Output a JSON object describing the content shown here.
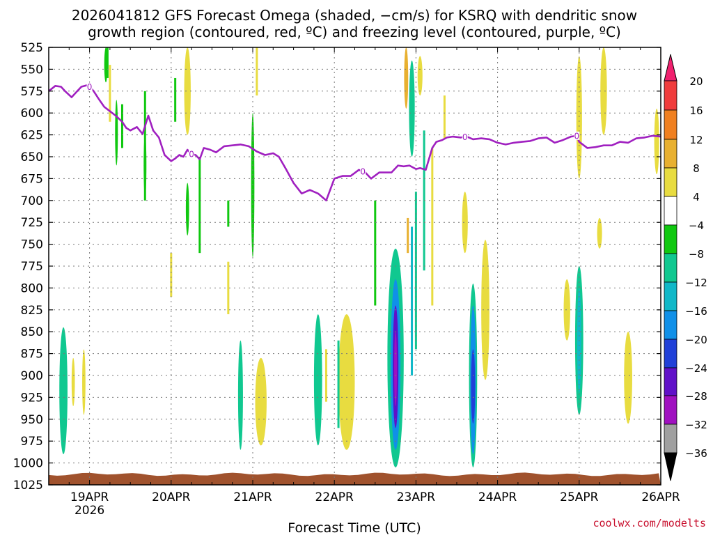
{
  "chart_data": {
    "type": "heatmap",
    "title_line1": "2026041812 GFS Forecast Omega (shaded, −cm/s) for KSRQ with dendritic snow",
    "title_line2": "growth region (contoured, red, ºC) and freezing level (contoured, purple, ºC)",
    "xlabel": "Forecast Time (UTC)",
    "x_tick_labels": [
      "19APR",
      "20APR",
      "21APR",
      "22APR",
      "23APR",
      "24APR",
      "25APR",
      "26APR"
    ],
    "x_tick_sublabel": "2026",
    "x_range_days": [
      18.5,
      26.0
    ],
    "y_tick_labels": [
      525,
      550,
      575,
      600,
      625,
      650,
      675,
      700,
      725,
      750,
      775,
      800,
      825,
      850,
      875,
      900,
      925,
      950,
      975,
      1000,
      1025
    ],
    "ylim_hpa": [
      525,
      1025
    ],
    "grid": true,
    "colorbar": {
      "labels": [
        "20",
        "16",
        "12",
        "8",
        "4",
        "−4",
        "−8",
        "−12",
        "−16",
        "−20",
        "−24",
        "−28",
        "−32",
        "−36"
      ],
      "colors": [
        "#f0206e",
        "#f03c3c",
        "#f08020",
        "#e8b030",
        "#e8dc40",
        "#ffffff",
        "#10c810",
        "#10c890",
        "#10b8c8",
        "#1090e8",
        "#2040d8",
        "#6010c8",
        "#a010c0",
        "#a0a0a0",
        "#000000"
      ]
    },
    "freezing_level_label": "0",
    "freezing_level": {
      "day": [
        18.5,
        18.58,
        18.65,
        18.7,
        18.78,
        18.85,
        18.9,
        18.98,
        19.05,
        19.12,
        19.18,
        19.25,
        19.32,
        19.4,
        19.45,
        19.5,
        19.58,
        19.65,
        19.72,
        19.78,
        19.85,
        19.92,
        20.0,
        20.05,
        20.1,
        20.15,
        20.2,
        20.25,
        20.3,
        20.35,
        20.4,
        20.48,
        20.55,
        20.65,
        20.75,
        20.85,
        20.95,
        21.05,
        21.15,
        21.25,
        21.32,
        21.4,
        21.5,
        21.6,
        21.7,
        21.8,
        21.9,
        22.0,
        22.1,
        22.2,
        22.3,
        22.38,
        22.45,
        22.55,
        22.62,
        22.7,
        22.78,
        22.85,
        22.92,
        23.0,
        23.05,
        23.12,
        23.2,
        23.25,
        23.32,
        23.38,
        23.45,
        23.55,
        23.62,
        23.7,
        23.8,
        23.9,
        24.0,
        24.1,
        24.2,
        24.3,
        24.4,
        24.5,
        24.6,
        24.7,
        24.8,
        24.9,
        24.97,
        25.0,
        25.1,
        25.2,
        25.3,
        25.4,
        25.5,
        25.6,
        25.7,
        25.8,
        25.9,
        26.0
      ],
      "hpa": [
        575,
        569,
        570,
        575,
        582,
        575,
        570,
        568,
        575,
        585,
        593,
        598,
        603,
        610,
        617,
        620,
        616,
        624,
        603,
        620,
        628,
        648,
        655,
        652,
        648,
        650,
        642,
        647,
        648,
        653,
        640,
        642,
        645,
        638,
        637,
        636,
        638,
        644,
        648,
        646,
        650,
        663,
        680,
        692,
        688,
        692,
        700,
        675,
        672,
        672,
        665,
        668,
        675,
        668,
        668,
        668,
        660,
        661,
        660,
        664,
        663,
        665,
        640,
        633,
        631,
        628,
        627,
        628,
        627,
        630,
        629,
        630,
        634,
        636,
        634,
        633,
        632,
        629,
        628,
        634,
        631,
        627,
        626,
        633,
        640,
        639,
        637,
        637,
        633,
        634,
        629,
        628,
        626,
        627
      ],
      "labels_at_day": [
        19.0,
        20.25,
        22.35,
        23.6,
        24.97
      ]
    },
    "terrain_hpa": 1013,
    "omega_regions": [
      {
        "day": 18.68,
        "hpa_top": 845,
        "hpa_bottom": 990,
        "rx_day": 0.05,
        "cmps": -8
      },
      {
        "day": 18.8,
        "hpa_top": 880,
        "hpa_bottom": 935,
        "rx_day": 0.02,
        "cmps": 5
      },
      {
        "day": 18.93,
        "hpa_top": 870,
        "hpa_bottom": 945,
        "rx_day": 0.02,
        "cmps": 5
      },
      {
        "day": 19.2,
        "hpa_top": 525,
        "hpa_bottom": 565,
        "rx_day": 0.02,
        "cmps": -6
      },
      {
        "day": 19.33,
        "hpa_top": 585,
        "hpa_bottom": 660,
        "rx_day": 0.015,
        "cmps": -6
      },
      {
        "day": 19.68,
        "hpa_top": 625,
        "hpa_bottom": 695,
        "rx_day": 0.015,
        "cmps": -6
      },
      {
        "day": 20.2,
        "hpa_top": 680,
        "hpa_bottom": 740,
        "rx_day": 0.02,
        "cmps": -7
      },
      {
        "day": 21.0,
        "hpa_top": 600,
        "hpa_bottom": 765,
        "rx_day": 0.02,
        "cmps": -7
      },
      {
        "day": 21.1,
        "hpa_top": 880,
        "hpa_bottom": 980,
        "rx_day": 0.07,
        "cmps": 5
      },
      {
        "day": 20.85,
        "hpa_top": 860,
        "hpa_bottom": 985,
        "rx_day": 0.03,
        "cmps": -8
      },
      {
        "day": 21.8,
        "hpa_top": 830,
        "hpa_bottom": 980,
        "rx_day": 0.05,
        "cmps": -8
      },
      {
        "day": 22.15,
        "hpa_top": 830,
        "hpa_bottom": 985,
        "rx_day": 0.1,
        "cmps": 5
      },
      {
        "day": 22.75,
        "hpa_top": 755,
        "hpa_bottom": 1005,
        "rx_day": 0.1,
        "cmps": -8
      },
      {
        "day": 22.75,
        "hpa_top": 790,
        "hpa_bottom": 985,
        "rx_day": 0.06,
        "cmps": -16
      },
      {
        "day": 22.75,
        "hpa_top": 820,
        "hpa_bottom": 960,
        "rx_day": 0.035,
        "cmps": -24
      },
      {
        "day": 22.75,
        "hpa_top": 850,
        "hpa_bottom": 935,
        "rx_day": 0.012,
        "cmps": -31
      },
      {
        "day": 22.88,
        "hpa_top": 525,
        "hpa_bottom": 595,
        "rx_day": 0.025,
        "cmps": 8
      },
      {
        "day": 23.7,
        "hpa_top": 795,
        "hpa_bottom": 1005,
        "rx_day": 0.05,
        "cmps": -8
      },
      {
        "day": 23.7,
        "hpa_top": 820,
        "hpa_bottom": 990,
        "rx_day": 0.035,
        "cmps": -16
      },
      {
        "day": 23.7,
        "hpa_top": 870,
        "hpa_bottom": 955,
        "rx_day": 0.025,
        "cmps": -22
      },
      {
        "day": 23.6,
        "hpa_top": 690,
        "hpa_bottom": 760,
        "rx_day": 0.035,
        "cmps": 5
      },
      {
        "day": 23.85,
        "hpa_top": 745,
        "hpa_bottom": 905,
        "rx_day": 0.05,
        "cmps": 5
      },
      {
        "day": 24.85,
        "hpa_top": 790,
        "hpa_bottom": 860,
        "rx_day": 0.04,
        "cmps": 5
      },
      {
        "day": 25.0,
        "hpa_top": 535,
        "hpa_bottom": 675,
        "rx_day": 0.035,
        "cmps": 5
      },
      {
        "day": 25.0,
        "hpa_top": 775,
        "hpa_bottom": 945,
        "rx_day": 0.05,
        "cmps": -8
      },
      {
        "day": 25.0,
        "hpa_top": 800,
        "hpa_bottom": 920,
        "rx_day": 0.025,
        "cmps": -12
      },
      {
        "day": 25.3,
        "hpa_top": 525,
        "hpa_bottom": 625,
        "rx_day": 0.04,
        "cmps": 5
      },
      {
        "day": 25.25,
        "hpa_top": 720,
        "hpa_bottom": 755,
        "rx_day": 0.03,
        "cmps": 5
      },
      {
        "day": 25.6,
        "hpa_top": 850,
        "hpa_bottom": 955,
        "rx_day": 0.05,
        "cmps": 5
      },
      {
        "day": 25.95,
        "hpa_top": 595,
        "hpa_bottom": 670,
        "rx_day": 0.03,
        "cmps": 5
      },
      {
        "day": 20.2,
        "hpa_top": 525,
        "hpa_bottom": 625,
        "rx_day": 0.04,
        "cmps": 5
      },
      {
        "day": 22.95,
        "hpa_top": 540,
        "hpa_bottom": 650,
        "rx_day": 0.035,
        "cmps": -8
      },
      {
        "day": 23.05,
        "hpa_top": 535,
        "hpa_bottom": 580,
        "rx_day": 0.03,
        "cmps": 5
      }
    ],
    "omega_streaks": [
      {
        "day": 19.22,
        "hpa_top": 525,
        "hpa_bottom": 560,
        "cmps": -6
      },
      {
        "day": 19.25,
        "hpa_top": 545,
        "hpa_bottom": 610,
        "cmps": 5
      },
      {
        "day": 19.4,
        "hpa_top": 590,
        "hpa_bottom": 640,
        "cmps": -7
      },
      {
        "day": 19.68,
        "hpa_top": 575,
        "hpa_bottom": 700,
        "cmps": -6
      },
      {
        "day": 20.0,
        "hpa_top": 760,
        "hpa_bottom": 810,
        "cmps": 5
      },
      {
        "day": 20.05,
        "hpa_top": 560,
        "hpa_bottom": 610,
        "cmps": -7
      },
      {
        "day": 20.35,
        "hpa_top": 650,
        "hpa_bottom": 760,
        "cmps": -7
      },
      {
        "day": 20.7,
        "hpa_top": 700,
        "hpa_bottom": 730,
        "cmps": -7
      },
      {
        "day": 21.05,
        "hpa_top": 510,
        "hpa_bottom": 580,
        "cmps": 5
      },
      {
        "day": 22.05,
        "hpa_top": 860,
        "hpa_bottom": 960,
        "cmps": -8
      },
      {
        "day": 22.5,
        "hpa_top": 700,
        "hpa_bottom": 820,
        "cmps": -7
      },
      {
        "day": 23.0,
        "hpa_top": 690,
        "hpa_bottom": 870,
        "cmps": -10
      },
      {
        "day": 23.1,
        "hpa_top": 620,
        "hpa_bottom": 780,
        "cmps": -8
      },
      {
        "day": 23.2,
        "hpa_top": 640,
        "hpa_bottom": 820,
        "cmps": 5
      },
      {
        "day": 22.95,
        "hpa_top": 730,
        "hpa_bottom": 900,
        "cmps": -12
      },
      {
        "day": 22.9,
        "hpa_top": 720,
        "hpa_bottom": 760,
        "cmps": 10
      },
      {
        "day": 23.35,
        "hpa_top": 580,
        "hpa_bottom": 630,
        "cmps": 5
      },
      {
        "day": 20.7,
        "hpa_top": 770,
        "hpa_bottom": 830,
        "cmps": 5
      },
      {
        "day": 21.9,
        "hpa_top": 870,
        "hpa_bottom": 930,
        "cmps": 5
      }
    ]
  },
  "credit_text": "coolwx.com/modelts"
}
